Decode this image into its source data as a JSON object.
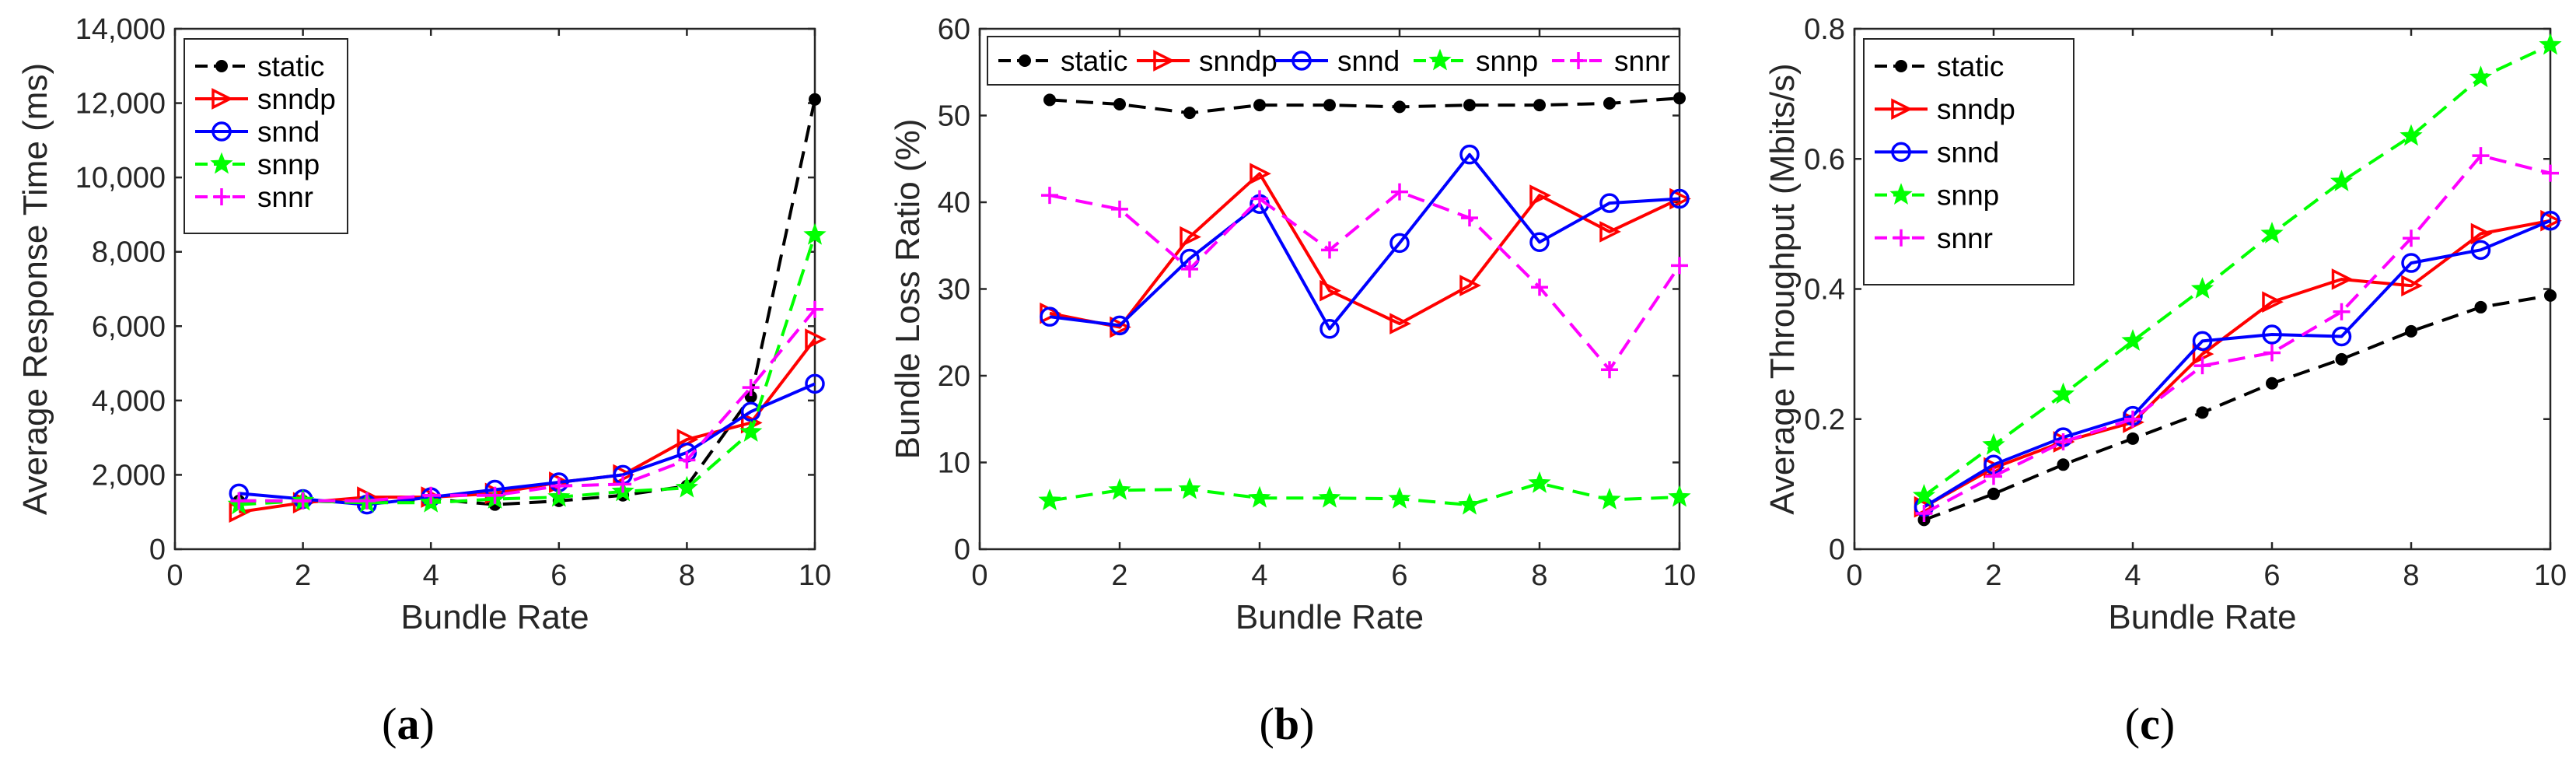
{
  "chart_data": [
    {
      "type": "line",
      "caption": "(a)",
      "caption_letter": "a",
      "xlabel": "Bundle Rate",
      "ylabel": "Average Response Time (ms)",
      "xlim": [
        0,
        10
      ],
      "ylim": [
        0,
        14000
      ],
      "x_ticks": [
        0,
        2,
        4,
        6,
        8,
        10
      ],
      "x_tick_labels": [
        "0",
        "2",
        "4",
        "6",
        "8",
        "10"
      ],
      "y_ticks": [
        0,
        2000,
        4000,
        6000,
        8000,
        10000,
        12000,
        14000
      ],
      "y_tick_labels": [
        "0",
        "2,000",
        "4,000",
        "6,000",
        "8,000",
        "10,000",
        "12,000",
        "14,000"
      ],
      "legend_position": "top-left",
      "legend_layout": "vertical",
      "x": [
        1,
        2,
        3,
        4,
        5,
        6,
        7,
        8,
        9,
        10
      ],
      "series": [
        {
          "name": "static",
          "color": "#000000",
          "marker": "dot",
          "dashed": true,
          "values": [
            1300,
            1300,
            1250,
            1350,
            1200,
            1300,
            1450,
            1700,
            4100,
            12100
          ]
        },
        {
          "name": "snndp",
          "color": "#ff0000",
          "marker": "triangle",
          "dashed": false,
          "values": [
            1000,
            1250,
            1400,
            1400,
            1500,
            1800,
            2000,
            2950,
            3400,
            5650
          ]
        },
        {
          "name": "snnd",
          "color": "#0000ff",
          "marker": "circle",
          "dashed": false,
          "values": [
            1500,
            1350,
            1200,
            1400,
            1600,
            1800,
            2000,
            2600,
            3700,
            4450
          ]
        },
        {
          "name": "snnp",
          "color": "#00ff00",
          "marker": "star",
          "dashed": true,
          "values": [
            1200,
            1300,
            1250,
            1250,
            1350,
            1400,
            1550,
            1650,
            3150,
            8450
          ]
        },
        {
          "name": "snnr",
          "color": "#ff00ff",
          "marker": "plus",
          "dashed": true,
          "values": [
            1300,
            1300,
            1300,
            1450,
            1450,
            1700,
            1750,
            2400,
            4350,
            6450
          ]
        }
      ]
    },
    {
      "type": "line",
      "caption": "(b)",
      "caption_letter": "b",
      "xlabel": "Bundle Rate",
      "ylabel": "Bundle Loss Ratio (%)",
      "xlim": [
        0,
        10
      ],
      "ylim": [
        0,
        60
      ],
      "x_ticks": [
        0,
        2,
        4,
        6,
        8,
        10
      ],
      "x_tick_labels": [
        "0",
        "2",
        "4",
        "6",
        "8",
        "10"
      ],
      "y_ticks": [
        0,
        10,
        20,
        30,
        40,
        50,
        60
      ],
      "y_tick_labels": [
        "0",
        "10",
        "20",
        "30",
        "40",
        "50",
        "60"
      ],
      "legend_position": "top",
      "legend_layout": "horizontal",
      "x": [
        1,
        2,
        3,
        4,
        5,
        6,
        7,
        8,
        9,
        10
      ],
      "series": [
        {
          "name": "static",
          "color": "#000000",
          "marker": "dot",
          "dashed": true,
          "values": [
            51.8,
            51.3,
            50.3,
            51.2,
            51.2,
            51.0,
            51.2,
            51.2,
            51.4,
            52.0
          ]
        },
        {
          "name": "snndp",
          "color": "#ff0000",
          "marker": "triangle",
          "dashed": false,
          "values": [
            27.2,
            25.6,
            36.0,
            43.3,
            29.8,
            26.0,
            30.4,
            40.8,
            36.6,
            40.4
          ]
        },
        {
          "name": "snnd",
          "color": "#0000ff",
          "marker": "circle",
          "dashed": false,
          "values": [
            26.8,
            25.8,
            33.5,
            39.8,
            25.4,
            35.3,
            45.5,
            35.4,
            39.9,
            40.4
          ]
        },
        {
          "name": "snnp",
          "color": "#00ff00",
          "marker": "star",
          "dashed": true,
          "values": [
            5.6,
            6.8,
            6.9,
            5.9,
            5.9,
            5.8,
            5.1,
            7.6,
            5.7,
            6.0
          ]
        },
        {
          "name": "snnr",
          "color": "#ff00ff",
          "marker": "plus",
          "dashed": true,
          "values": [
            40.8,
            39.2,
            32.3,
            40.4,
            34.5,
            41.2,
            38.2,
            30.2,
            20.7,
            32.7
          ]
        }
      ]
    },
    {
      "type": "line",
      "caption": "(c)",
      "caption_letter": "c",
      "xlabel": "Bundle Rate",
      "ylabel": "Average Throughput (Mbits/s)",
      "xlim": [
        0,
        10
      ],
      "ylim": [
        0,
        0.8
      ],
      "x_ticks": [
        0,
        2,
        4,
        6,
        8,
        10
      ],
      "x_tick_labels": [
        "0",
        "2",
        "4",
        "6",
        "8",
        "10"
      ],
      "y_ticks": [
        0,
        0.2,
        0.4,
        0.6,
        0.8
      ],
      "y_tick_labels": [
        "0",
        "0.2",
        "0.4",
        "0.6",
        "0.8"
      ],
      "legend_position": "top-left",
      "legend_layout": "vertical",
      "x": [
        1,
        2,
        3,
        4,
        5,
        6,
        7,
        8,
        9,
        10
      ],
      "series": [
        {
          "name": "static",
          "color": "#000000",
          "marker": "dot",
          "dashed": true,
          "values": [
            0.045,
            0.085,
            0.13,
            0.17,
            0.21,
            0.255,
            0.292,
            0.335,
            0.372,
            0.39
          ]
        },
        {
          "name": "snndp",
          "color": "#ff0000",
          "marker": "triangle",
          "dashed": false,
          "values": [
            0.065,
            0.125,
            0.165,
            0.195,
            0.3,
            0.38,
            0.415,
            0.405,
            0.485,
            0.505
          ]
        },
        {
          "name": "snnd",
          "color": "#0000ff",
          "marker": "circle",
          "dashed": false,
          "values": [
            0.065,
            0.13,
            0.172,
            0.205,
            0.32,
            0.33,
            0.327,
            0.44,
            0.46,
            0.505
          ]
        },
        {
          "name": "snnp",
          "color": "#00ff00",
          "marker": "star",
          "dashed": true,
          "values": [
            0.082,
            0.16,
            0.238,
            0.32,
            0.4,
            0.485,
            0.565,
            0.635,
            0.725,
            0.775
          ]
        },
        {
          "name": "snnr",
          "color": "#ff00ff",
          "marker": "plus",
          "dashed": true,
          "values": [
            0.055,
            0.112,
            0.165,
            0.2,
            0.282,
            0.302,
            0.365,
            0.478,
            0.605,
            0.578
          ]
        }
      ]
    }
  ]
}
